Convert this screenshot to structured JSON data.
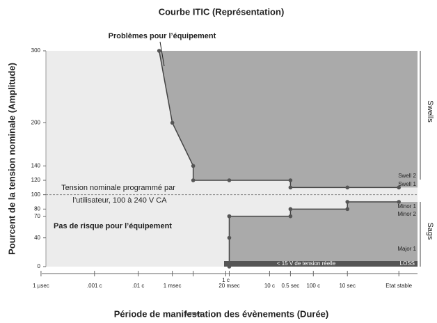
{
  "chart_data": {
    "type": "line",
    "title": "Courbe ITIC (Représentation)",
    "x_label": "Période de manifestation des évènements (Durée)",
    "y_label": "Pourcent de la tension nominale (Amplitude)",
    "xscale": "log",
    "xlim": [
      5e-07,
      400
    ],
    "ylim": [
      0,
      300
    ],
    "xticks": [
      {
        "value": 1e-06,
        "label": "1 µsec"
      },
      {
        "value": 1.667e-05,
        "label": ".001 c"
      },
      {
        "value": 0.0001667,
        "label": ".01 c"
      },
      {
        "value": 0.001,
        "label": "1 msec"
      },
      {
        "value": 0.003,
        "label": "3 msec"
      },
      {
        "value": 0.01667,
        "label": "1 c"
      },
      {
        "value": 0.02,
        "label": "20 msec"
      },
      {
        "value": 0.1667,
        "label": "10 c"
      },
      {
        "value": 0.5,
        "label": "0.5 sec"
      },
      {
        "value": 1.667,
        "label": "100 c"
      },
      {
        "value": 10,
        "label": "10 sec"
      },
      {
        "value": 150,
        "label": "Etat stable"
      }
    ],
    "yticks": [
      0,
      40,
      70,
      80,
      100,
      120,
      140,
      200,
      300
    ],
    "nominal": 100,
    "series": [
      {
        "color": "#444444",
        "fill": "#aaaaaa",
        "x": [
          0.0005,
          0.001,
          0.003,
          0.003,
          0.02,
          0.5,
          0.5,
          10,
          150
        ],
        "values": [
          300,
          200,
          140,
          120,
          120,
          120,
          110,
          110,
          110
        ]
      },
      {
        "color": "#444444",
        "fill": "#aaaaaa",
        "x": [
          0.02,
          0.02,
          0.02,
          0.02,
          0.5,
          0.5,
          10,
          10,
          150
        ],
        "values": [
          0,
          40,
          70,
          70,
          70,
          80,
          80,
          90,
          90
        ]
      }
    ],
    "annotations": {
      "problems": "Problèmes pour l’équipement",
      "nominal_text": [
        "Tension nominale programmé par",
        "l’utilisateur, 100 à 240 V CA"
      ],
      "no_risk": "Pas de risque pour l’équipement",
      "swells": "Swells",
      "sags": "Sags",
      "swell2": "Swell 2",
      "swell1": "Swell 1",
      "minor1": "Minor 1",
      "minor2": "Minor 2",
      "major1": "Major 1",
      "loss": "LOSS",
      "loss_note": "< 15 V de tension réelle"
    }
  }
}
